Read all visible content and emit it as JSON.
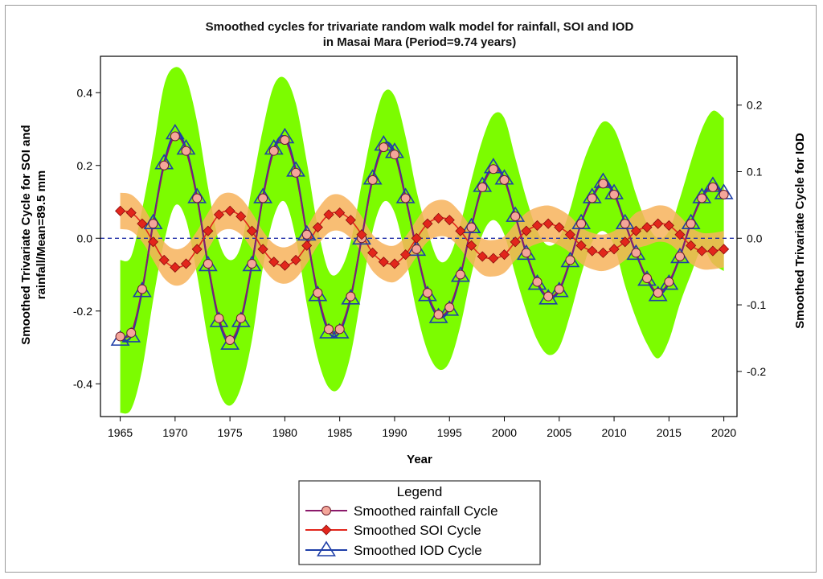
{
  "chart_data": {
    "type": "line",
    "title_line1": "Smoothed cycles for trivariate random walk model for rainfall, SOI and IOD",
    "title_line2": "in Masai Mara (Period=9.74 years)",
    "xlabel": "Year",
    "ylabel_line1": "Smoothed Trivariate Cycle for SOI and",
    "ylabel_line2": "rainfall/Mean=89.5 mm",
    "y2label": "Smoothed Trivariate Cycle for IOD",
    "xlim": [
      1963.2,
      2021.2
    ],
    "ylim": [
      -0.49,
      0.5
    ],
    "y2lim": [
      -0.2678,
      0.2733
    ],
    "x_ticks": [
      1965,
      1970,
      1975,
      1980,
      1985,
      1990,
      1995,
      2000,
      2005,
      2010,
      2015,
      2020
    ],
    "y_ticks": [
      -0.4,
      -0.2,
      0.0,
      0.2,
      0.4
    ],
    "y_tick_labels": [
      "-0.4",
      "-0.2",
      "0.0",
      "0.2",
      "0.4"
    ],
    "y2_ticks": [
      -0.2,
      -0.1,
      0.0,
      0.1,
      0.2
    ],
    "y2_tick_labels": [
      "-0.2",
      "-0.1",
      "0.0",
      "0.1",
      "0.2"
    ],
    "x": [
      1965,
      1966,
      1967,
      1968,
      1969,
      1970,
      1971,
      1972,
      1973,
      1974,
      1975,
      1976,
      1977,
      1978,
      1979,
      1980,
      1981,
      1982,
      1983,
      1984,
      1985,
      1986,
      1987,
      1988,
      1989,
      1990,
      1991,
      1992,
      1993,
      1994,
      1995,
      1996,
      1997,
      1998,
      1999,
      2000,
      2001,
      2002,
      2003,
      2004,
      2005,
      2006,
      2007,
      2008,
      2009,
      2010,
      2011,
      2012,
      2013,
      2014,
      2015,
      2016,
      2017,
      2018,
      2019,
      2020
    ],
    "series": [
      {
        "name": "Smoothed rainfall  Cycle",
        "axis": "left",
        "color": "#8B1A6B",
        "marker_color": "#F4A69A",
        "values": [
          -0.27,
          -0.26,
          -0.14,
          0.04,
          0.2,
          0.28,
          0.24,
          0.11,
          -0.07,
          -0.22,
          -0.28,
          -0.22,
          -0.07,
          0.11,
          0.24,
          0.27,
          0.18,
          0.01,
          -0.15,
          -0.25,
          -0.25,
          -0.16,
          0.0,
          0.16,
          0.25,
          0.23,
          0.11,
          -0.03,
          -0.15,
          -0.21,
          -0.19,
          -0.1,
          0.03,
          0.14,
          0.19,
          0.16,
          0.06,
          -0.04,
          -0.12,
          -0.16,
          -0.14,
          -0.06,
          0.04,
          0.11,
          0.15,
          0.12,
          0.04,
          -0.04,
          -0.11,
          -0.15,
          -0.12,
          -0.05,
          0.04,
          0.11,
          0.14,
          0.12
        ],
        "band_upper": [
          -0.06,
          -0.05,
          0.08,
          0.24,
          0.42,
          0.47,
          0.44,
          0.32,
          0.14,
          -0.01,
          -0.06,
          -0.02,
          0.14,
          0.3,
          0.42,
          0.44,
          0.37,
          0.21,
          0.03,
          -0.09,
          -0.09,
          -0.01,
          0.15,
          0.3,
          0.4,
          0.39,
          0.28,
          0.13,
          0.02,
          -0.06,
          -0.05,
          0.04,
          0.16,
          0.27,
          0.34,
          0.33,
          0.22,
          0.11,
          0.02,
          -0.02,
          0.0,
          0.08,
          0.19,
          0.27,
          0.32,
          0.3,
          0.22,
          0.12,
          0.04,
          0.0,
          0.02,
          0.11,
          0.21,
          0.3,
          0.35,
          0.33
        ],
        "band_lower": [
          -0.48,
          -0.47,
          -0.36,
          -0.17,
          -0.01,
          0.09,
          0.05,
          -0.1,
          -0.28,
          -0.42,
          -0.46,
          -0.41,
          -0.28,
          -0.08,
          0.06,
          0.1,
          0.0,
          -0.18,
          -0.33,
          -0.41,
          -0.41,
          -0.32,
          -0.15,
          0.02,
          0.1,
          0.07,
          -0.05,
          -0.2,
          -0.31,
          -0.36,
          -0.34,
          -0.24,
          -0.1,
          0.01,
          0.05,
          0.01,
          -0.1,
          -0.2,
          -0.28,
          -0.32,
          -0.3,
          -0.21,
          -0.1,
          -0.01,
          0.02,
          -0.02,
          -0.13,
          -0.22,
          -0.29,
          -0.33,
          -0.28,
          -0.18,
          -0.1,
          -0.03,
          -0.07,
          -0.09
        ],
        "band_color": "#7CFC00"
      },
      {
        "name": "Smoothed SOI  Cycle",
        "axis": "left",
        "color": "#E2261C",
        "marker_color": "#E2261C",
        "values": [
          0.075,
          0.07,
          0.04,
          -0.01,
          -0.06,
          -0.08,
          -0.07,
          -0.03,
          0.02,
          0.065,
          0.075,
          0.06,
          0.02,
          -0.03,
          -0.065,
          -0.075,
          -0.06,
          -0.02,
          0.03,
          0.065,
          0.07,
          0.05,
          0.01,
          -0.04,
          -0.065,
          -0.07,
          -0.045,
          0.0,
          0.04,
          0.055,
          0.05,
          0.02,
          -0.02,
          -0.05,
          -0.055,
          -0.045,
          -0.01,
          0.02,
          0.035,
          0.04,
          0.03,
          0.01,
          -0.02,
          -0.035,
          -0.04,
          -0.03,
          -0.01,
          0.02,
          0.03,
          0.04,
          0.035,
          0.01,
          -0.02,
          -0.035,
          -0.035,
          -0.03
        ],
        "band_width": 0.05,
        "band_color": "#F7B35C"
      },
      {
        "name": "Smoothed IOD Cycle",
        "axis": "right",
        "color": "#1F3FA8",
        "marker_color": "none",
        "values": [
          -0.152,
          -0.147,
          -0.079,
          0.023,
          0.113,
          0.158,
          0.135,
          0.062,
          -0.04,
          -0.124,
          -0.158,
          -0.124,
          -0.04,
          0.062,
          0.135,
          0.152,
          0.102,
          0.006,
          -0.085,
          -0.141,
          -0.141,
          -0.09,
          0.0,
          0.09,
          0.141,
          0.13,
          0.062,
          -0.017,
          -0.085,
          -0.118,
          -0.107,
          -0.056,
          0.017,
          0.079,
          0.107,
          0.09,
          0.034,
          -0.023,
          -0.068,
          -0.09,
          -0.079,
          -0.034,
          0.023,
          0.062,
          0.085,
          0.068,
          0.023,
          -0.023,
          -0.062,
          -0.085,
          -0.068,
          -0.028,
          0.023,
          0.062,
          0.079,
          0.068
        ]
      }
    ],
    "legend_title": "Legend",
    "legend_placement": "bottom-center"
  }
}
